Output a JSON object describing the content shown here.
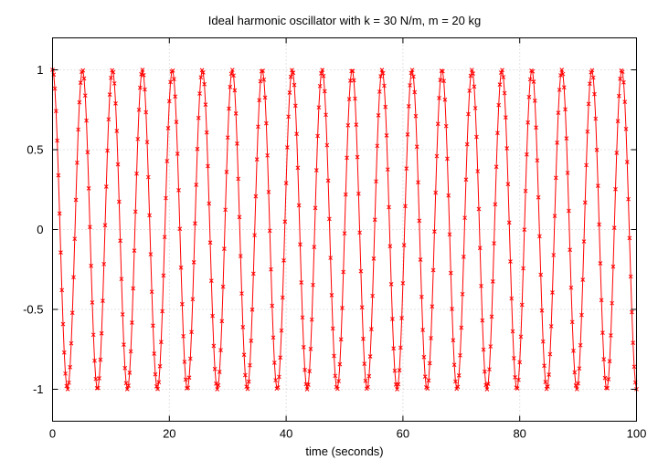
{
  "chart_data": {
    "type": "line",
    "title": "Ideal harmonic oscillator with k = 30 N/m, m = 20 kg",
    "xlabel": "time (seconds)",
    "ylabel": "",
    "xlim": [
      0,
      100
    ],
    "ylim": [
      -1.2,
      1.2
    ],
    "x_ticks": [
      "0",
      "20",
      "40",
      "60",
      "80",
      "100"
    ],
    "y_ticks": [
      "1",
      "0.5",
      "0",
      "-0.5",
      "-1"
    ],
    "grid": true,
    "series": [
      {
        "function": "cos(sqrt(k/m) * t)",
        "k": 30,
        "m": 20,
        "amplitude": 1,
        "t_start": 0,
        "t_end": 100,
        "t_step": 0.2,
        "color": "#ff0000",
        "marker": "x",
        "line": true
      }
    ]
  }
}
